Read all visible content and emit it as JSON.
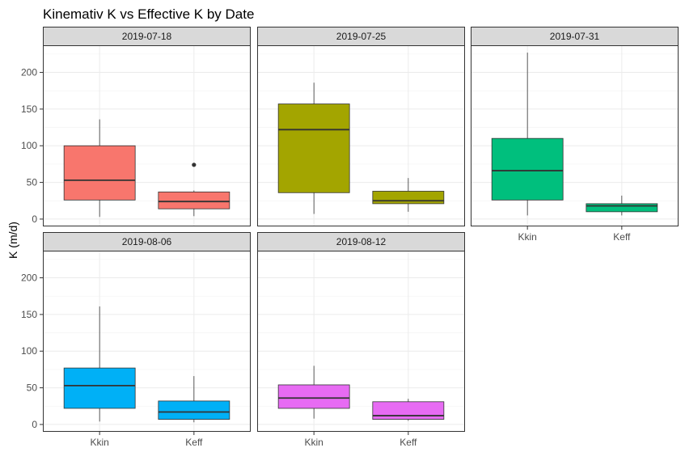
{
  "chart_data": {
    "type": "boxplot",
    "title": "Kinemativ K vs Effective K by Date",
    "xlabel": "",
    "ylabel": "K (m/d)",
    "categories": [
      "Kkin",
      "Keff"
    ],
    "ylim": [
      -10,
      237
    ],
    "yticks": [
      0,
      50,
      100,
      150,
      200
    ],
    "grid": true,
    "legend": "none",
    "panels": [
      {
        "label": "2019-07-18",
        "color": "#F8766D",
        "boxes": [
          {
            "category": "Kkin",
            "min": 3,
            "q1": 26,
            "median": 53,
            "q3": 100,
            "max": 136,
            "outliers": []
          },
          {
            "category": "Keff",
            "min": 4,
            "q1": 14,
            "median": 24,
            "q3": 37,
            "max": 39,
            "outliers": [
              74
            ]
          }
        ]
      },
      {
        "label": "2019-07-25",
        "color": "#A3A500",
        "boxes": [
          {
            "category": "Kkin",
            "min": 7,
            "q1": 36,
            "median": 122,
            "q3": 157,
            "max": 186,
            "outliers": []
          },
          {
            "category": "Keff",
            "min": 10,
            "q1": 21,
            "median": 25,
            "q3": 38,
            "max": 56,
            "outliers": []
          }
        ]
      },
      {
        "label": "2019-07-31",
        "color": "#00BF7D",
        "boxes": [
          {
            "category": "Kkin",
            "min": 5,
            "q1": 26,
            "median": 66,
            "q3": 110,
            "max": 227,
            "outliers": []
          },
          {
            "category": "Keff",
            "min": 5,
            "q1": 10,
            "median": 18,
            "q3": 21,
            "max": 32,
            "outliers": []
          }
        ]
      },
      {
        "label": "2019-08-06",
        "color": "#00B0F6",
        "boxes": [
          {
            "category": "Kkin",
            "min": 4,
            "q1": 22,
            "median": 53,
            "q3": 77,
            "max": 161,
            "outliers": []
          },
          {
            "category": "Keff",
            "min": 3,
            "q1": 7,
            "median": 17,
            "q3": 32,
            "max": 66,
            "outliers": []
          }
        ]
      },
      {
        "label": "2019-08-12",
        "color": "#E76BF3",
        "boxes": [
          {
            "category": "Kkin",
            "min": 8,
            "q1": 22,
            "median": 36,
            "q3": 54,
            "max": 80,
            "outliers": []
          },
          {
            "category": "Keff",
            "min": 5,
            "q1": 7,
            "median": 12,
            "q3": 31,
            "max": 35,
            "outliers": []
          }
        ]
      }
    ]
  }
}
